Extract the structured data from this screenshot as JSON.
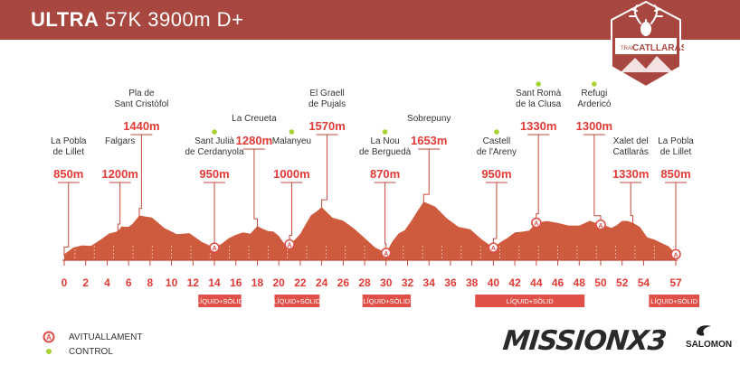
{
  "header": {
    "title_bold": "ULTRA",
    "title_rest": "57K 3900m D+",
    "badge_top": "TRAIL",
    "badge_name": "CATLLARAS"
  },
  "colors": {
    "banner": "#a8473f",
    "terrain": "#cf5b3f",
    "label_red": "#e23b36",
    "control_dot": "#a6d233",
    "supply_bar": "#e05048"
  },
  "waypoints": [
    {
      "km": 0,
      "name": [
        "La Pobla",
        "de Lillet"
      ],
      "alt": "850m",
      "altnum": 850,
      "label_km": 0.4,
      "tier": 2,
      "supply": false,
      "control": false
    },
    {
      "km": 5,
      "name": [
        "Falgars"
      ],
      "alt": "1200m",
      "altnum": 1200,
      "label_km": 5.2,
      "tier": 2,
      "supply": false,
      "control": false
    },
    {
      "km": 7,
      "name": [
        "Pla de",
        "Sant Cristòfol"
      ],
      "alt": "1440m",
      "altnum": 1440,
      "label_km": 7.2,
      "tier": 0,
      "supply": false,
      "control": false
    },
    {
      "km": 14,
      "name": [
        "Sant Julià",
        "de Cerdanyola"
      ],
      "alt": "950m",
      "altnum": 950,
      "label_km": 14,
      "tier": 2,
      "supply": true,
      "control": true
    },
    {
      "km": 18,
      "name": [
        "La Creueta"
      ],
      "alt": "1280m",
      "altnum": 1280,
      "label_km": 17.7,
      "tier": 1,
      "supply": false,
      "control": false
    },
    {
      "km": 21,
      "name": [
        "Malanyeu"
      ],
      "alt": "1000m",
      "altnum": 1000,
      "label_km": 21.2,
      "tier": 2,
      "supply": true,
      "control": true
    },
    {
      "km": 24,
      "name": [
        "El Graell",
        "de Pujals"
      ],
      "alt": "1570m",
      "altnum": 1570,
      "label_km": 24.5,
      "tier": 0,
      "supply": false,
      "control": false
    },
    {
      "km": 30,
      "name": [
        "La Nou",
        "de Berguedà"
      ],
      "alt": "870m",
      "altnum": 870,
      "label_km": 29.9,
      "tier": 2,
      "supply": true,
      "control": true
    },
    {
      "km": 33.5,
      "name": [
        "Sobrepuny"
      ],
      "alt": "1653m",
      "altnum": 1653,
      "label_km": 34,
      "tier": 1,
      "supply": false,
      "control": false
    },
    {
      "km": 40,
      "name": [
        "Castell",
        "de l'Areny"
      ],
      "alt": "950m",
      "altnum": 950,
      "label_km": 40.3,
      "tier": 2,
      "supply": true,
      "control": true
    },
    {
      "km": 44,
      "name": [
        "Sant Romà",
        "de la Clusa"
      ],
      "alt": "1330m",
      "altnum": 1330,
      "label_km": 44.2,
      "tier": 0,
      "supply": true,
      "control": true
    },
    {
      "km": 50,
      "name": [
        "Refugi",
        "Ardericó"
      ],
      "alt": "1300m",
      "altnum": 1300,
      "label_km": 49.4,
      "tier": 0,
      "supply": true,
      "control": true
    },
    {
      "km": 53,
      "name": [
        "Xalet del",
        "Catllaràs"
      ],
      "alt": "1330m",
      "altnum": 1330,
      "label_km": 52.8,
      "tier": 2,
      "supply": false,
      "control": false
    },
    {
      "km": 57,
      "name": [
        "La Pobla",
        "de Lillet"
      ],
      "alt": "850m",
      "altnum": 850,
      "label_km": 57,
      "tier": 2,
      "supply": true,
      "control": false
    }
  ],
  "axis": {
    "ticks": [
      0,
      2,
      4,
      6,
      8,
      10,
      12,
      14,
      16,
      18,
      20,
      22,
      24,
      26,
      28,
      30,
      32,
      34,
      36,
      38,
      40,
      42,
      44,
      46,
      48,
      50,
      52,
      54,
      57
    ],
    "max_km": 57
  },
  "supply_bars": [
    {
      "from_km": 12.5,
      "to_km": 16.5,
      "label": "LÍQUID+SÒLID"
    },
    {
      "from_km": 19.6,
      "to_km": 23.8,
      "label": "LÍQUID+SÒLID"
    },
    {
      "from_km": 27.8,
      "to_km": 32.3,
      "label": "LÍQUID+SÒLID"
    },
    {
      "from_km": 38.3,
      "to_km": 48.5,
      "label": "LÍQUID+SÒLID"
    },
    {
      "from_km": 54.5,
      "to_km": 59.2,
      "label": "LÍQUID+SÒLID"
    }
  ],
  "legend": {
    "supply_label": "AVITUALLAMENT",
    "control_label": "CONTROL",
    "supply_symbol": "A"
  },
  "brands": {
    "event": "MISSIONX3",
    "sponsor": "SALOMON"
  }
}
